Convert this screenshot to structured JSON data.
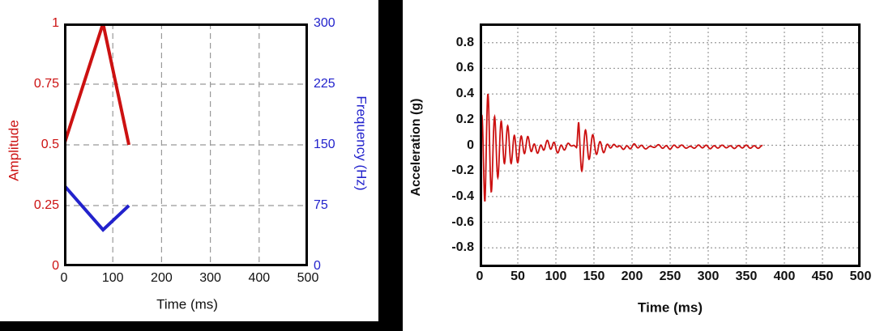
{
  "colors": {
    "line_red": "#cc1111",
    "line_blue": "#2222cc",
    "grid_gray": "#999999",
    "frame_black": "#000000",
    "divider_black": "#000000",
    "background": "#ffffff"
  },
  "chart_data": [
    {
      "type": "line",
      "title": "",
      "xlabel": "Time (ms)",
      "ylabel_left": "Amplitude",
      "ylabel_right": "Frequency (Hz)",
      "xlim": [
        0,
        500
      ],
      "ylim_left": [
        0,
        1
      ],
      "ylim_right": [
        0,
        300
      ],
      "x_ticks": [
        "0",
        "100",
        "200",
        "300",
        "400",
        "500"
      ],
      "y_ticks_left": [
        "0",
        "0.25",
        "0.5",
        "0.75",
        "1"
      ],
      "y_ticks_right": [
        "0",
        "75",
        "150",
        "225",
        "300"
      ],
      "grid": "dashed",
      "legend": "none",
      "series": [
        {
          "name": "amplitude",
          "axis": "left",
          "color": "#cc1111",
          "points": [
            [
              0,
              0.5
            ],
            [
              80,
              1.0
            ],
            [
              133,
              0.5
            ]
          ]
        },
        {
          "name": "frequency",
          "axis": "right",
          "color": "#2222cc",
          "points": [
            [
              0,
              100
            ],
            [
              80,
              45
            ],
            [
              133,
              75
            ]
          ]
        }
      ]
    },
    {
      "type": "line",
      "title": "",
      "xlabel": "Time (ms)",
      "ylabel": "Acceleration (g)",
      "xlim": [
        0,
        500
      ],
      "ylim": [
        -0.95,
        0.95
      ],
      "x_ticks": [
        "0",
        "50",
        "100",
        "150",
        "200",
        "250",
        "300",
        "350",
        "400",
        "450",
        "500"
      ],
      "y_ticks": [
        "-0.8",
        "-0.6",
        "-0.4",
        "-0.2",
        "0",
        "0.2",
        "0.4",
        "0.6",
        "0.8"
      ],
      "grid": "dotted",
      "legend": "none",
      "series": [
        {
          "name": "acceleration",
          "color": "#cc1111",
          "description": "Decaying ~115 Hz ring-down from t=0 (peak +0.40 g at ~13 ms, min -0.36 g), low ripple 50-125 ms, second ~106 Hz burst at ~127-200 ms (peak +0.18 g, min -0.17 g), tiny ripple near -0.01 g until trace ends at ~371 ms",
          "key_points": [
            [
              0,
              0
            ],
            [
              2,
              0.23
            ],
            [
              8,
              -0.36
            ],
            [
              13,
              0.4
            ],
            [
              18,
              -0.33
            ],
            [
              23,
              0.19
            ],
            [
              30,
              -0.15
            ],
            [
              35,
              0.17
            ],
            [
              42,
              0.09
            ],
            [
              50,
              0.08
            ],
            [
              70,
              0.05
            ],
            [
              100,
              0.07
            ],
            [
              120,
              -0.05
            ],
            [
              131,
              0.18
            ],
            [
              135,
              -0.17
            ],
            [
              140,
              0.15
            ],
            [
              152,
              0.06
            ],
            [
              170,
              0.03
            ],
            [
              200,
              -0.02
            ],
            [
              250,
              -0.01
            ],
            [
              300,
              -0.01
            ],
            [
              371,
              -0.01
            ]
          ],
          "model": {
            "t_start": 0,
            "t_end": 371.5,
            "dt": 0.35,
            "offset": -0.012,
            "components": [
              {
                "amp": 0.58,
                "decay": 0.046,
                "freq": 115,
                "t0": 0,
                "ramp": 7,
                "phase": 0
              },
              {
                "amp": 0.055,
                "decay": 0.012,
                "freq": 115,
                "t0": 0,
                "ramp": 7,
                "phase": 0
              },
              {
                "amp": 0.04,
                "decay": 0.008,
                "freq": 35,
                "t0": 0,
                "ramp": 2,
                "phase": 0.5
              },
              {
                "amp": 0.26,
                "decay": 0.06,
                "freq": 106,
                "t0": 127,
                "ramp": 3,
                "phase": 0
              },
              {
                "amp": 0.012,
                "decay": 0.0004,
                "freq": 95,
                "t0": 0,
                "ramp": 1,
                "phase": 0
              }
            ]
          }
        }
      ]
    }
  ]
}
